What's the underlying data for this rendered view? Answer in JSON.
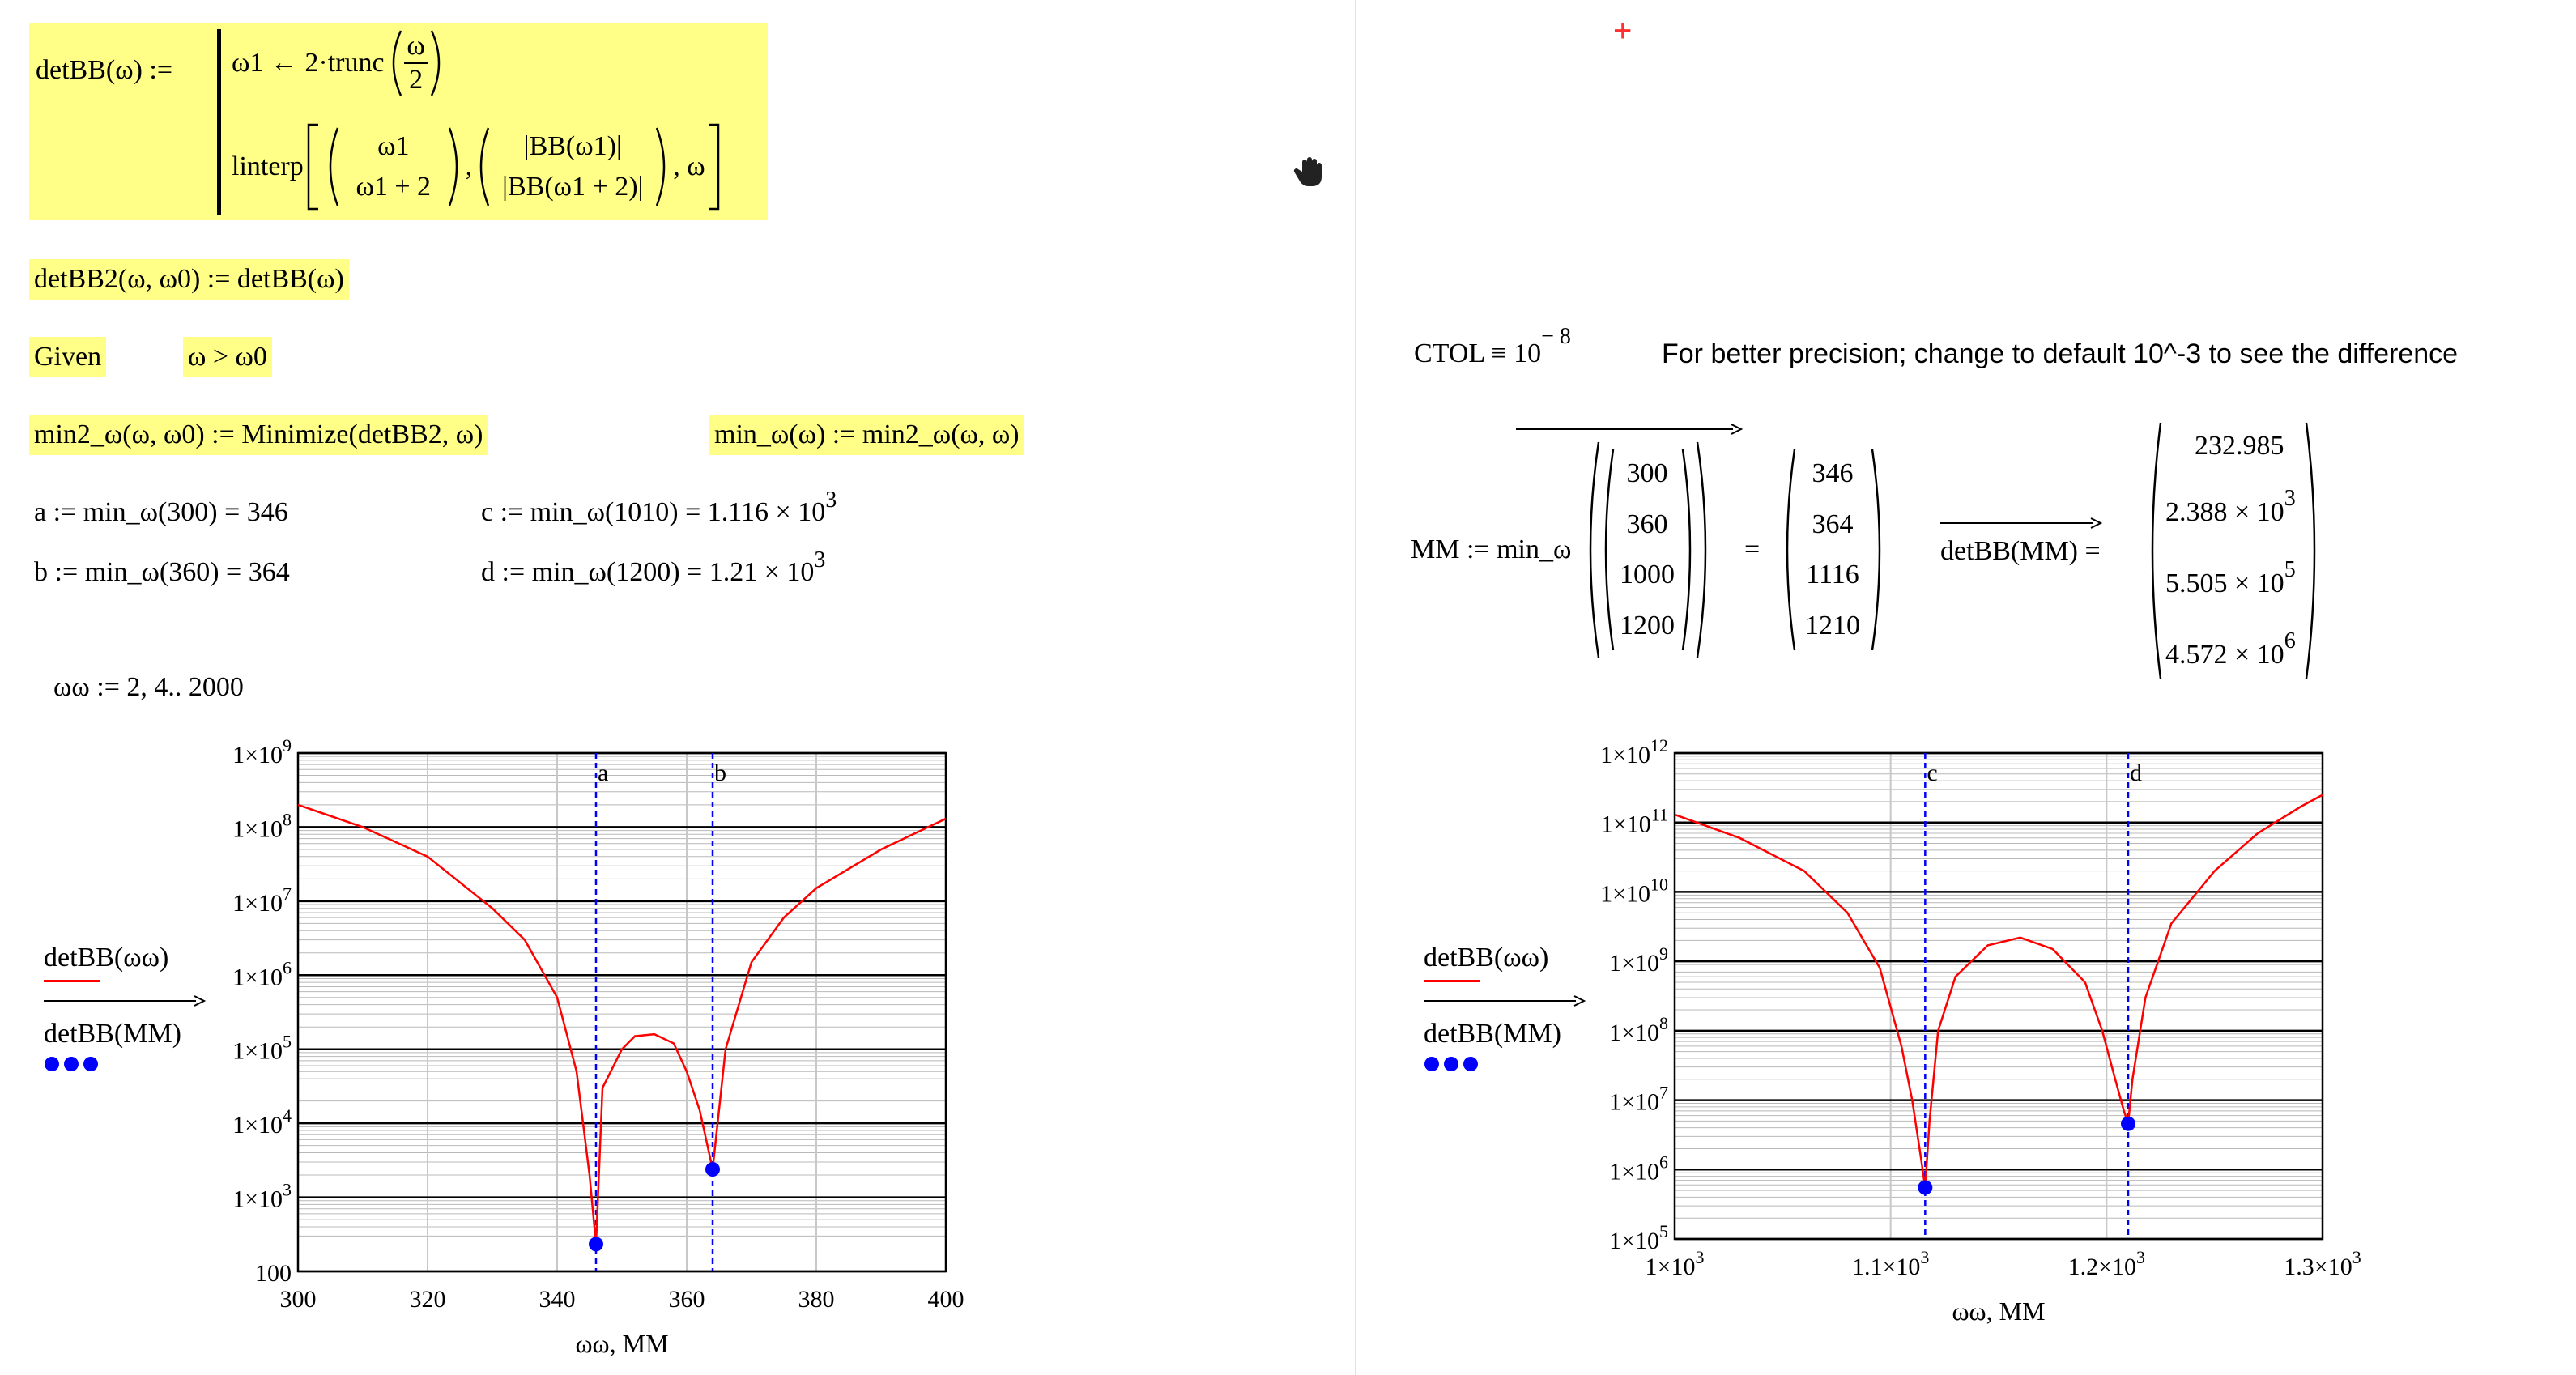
{
  "defs": {
    "detbb_def": {
      "lhs": "detBB(ω) :=",
      "line1": "ω1 ← 2·trunc",
      "frac_num": "ω",
      "frac_den": "2",
      "linterp": "linterp",
      "v1_top": "ω1",
      "v1_bot": "ω1 + 2",
      "v2_top": "|BB(ω1)|",
      "v2_bot": "|BB(ω1 + 2)|",
      "tail": ", ω"
    },
    "detbb2_def": "detBB2(ω, ω0) := detBB(ω)",
    "given": {
      "keyword": "Given",
      "constraint": "ω > ω0"
    },
    "min2_def": "min2_ω(ω, ω0) := Minimize(detBB2, ω)",
    "min_def": "min_ω(ω) := min2_ω(ω, ω)",
    "a_eq": "a := min_ω(300) = 346",
    "b_eq": "b := min_ω(360) = 364",
    "c_eq_base": "c := min_ω(1010) = 1.116 × 10",
    "c_eq_exp": "3",
    "d_eq_base": "d := min_ω(1200) = 1.21 × 10",
    "d_eq_exp": "3",
    "ww_range": "ωω := 2, 4.. 2000",
    "ctol_base": "CTOL ≡ 10",
    "ctol_exp": "− 8",
    "ctol_note": "For better precision; change to default 10^-3 to see the difference",
    "mm_lhs": "MM := min_ω",
    "mm_input": [
      "300",
      "360",
      "1000",
      "1200"
    ],
    "mm_eq": "=",
    "mm_result": [
      "346",
      "364",
      "1116",
      "1210"
    ],
    "detbb_mm_label": "detBB(MM) =",
    "detbb_mm_values": [
      {
        "base": "232.985",
        "exp": ""
      },
      {
        "base": "2.388 × 10",
        "exp": "3"
      },
      {
        "base": "5.505 × 10",
        "exp": "5"
      },
      {
        "base": "4.572 × 10",
        "exp": "6"
      }
    ]
  },
  "chart_data": [
    {
      "type": "line",
      "scale_y": "log",
      "xlabel": "ωω, MM",
      "legend": {
        "series1": "detBB(ωω)",
        "series2": "detBB(MM)",
        "placement": "left"
      },
      "xlim": [
        300,
        400
      ],
      "ylim": [
        100,
        1000000000
      ],
      "x_ticks": [
        "300",
        "320",
        "340",
        "360",
        "380",
        "400"
      ],
      "y_ticks": [
        "100",
        "1×10",
        "1×10",
        "1×10",
        "1×10",
        "1×10",
        "1×10",
        "1×10"
      ],
      "y_tick_exps": [
        "",
        "3",
        "4",
        "5",
        "6",
        "7",
        "8",
        "9"
      ],
      "markers": [
        {
          "label": "a",
          "x": 346
        },
        {
          "label": "b",
          "x": 364
        }
      ],
      "series": [
        {
          "name": "detBB(ωω)",
          "color": "#ff0000",
          "x": [
            300,
            310,
            320,
            330,
            335,
            340,
            343,
            345,
            346,
            347,
            350,
            352,
            355,
            358,
            360,
            362,
            363,
            364,
            366,
            370,
            375,
            380,
            390,
            400
          ],
          "y": [
            200000000,
            100000000,
            40000000,
            8000000,
            3000000,
            500000,
            50000,
            2000,
            232,
            30000,
            100000,
            150000,
            160000,
            120000,
            50000,
            15000,
            6000,
            2400,
            100000,
            1500000,
            6000000,
            15000000,
            50000000,
            130000000
          ]
        },
        {
          "name": "detBB(MM)",
          "color": "#0000ff",
          "style": "points",
          "x": [
            346,
            364
          ],
          "y": [
            233,
            2388
          ]
        }
      ]
    },
    {
      "type": "line",
      "scale_y": "log",
      "xlabel": "ωω, MM",
      "legend": {
        "series1": "detBB(ωω)",
        "series2": "detBB(MM)",
        "placement": "left"
      },
      "xlim": [
        1000,
        1300
      ],
      "ylim": [
        100000,
        1000000000000
      ],
      "x_ticks": [
        "1×10",
        "1.1×10",
        "1.2×10",
        "1.3×10"
      ],
      "x_tick_exps": [
        "3",
        "3",
        "3",
        "3"
      ],
      "y_ticks": [
        "1×10",
        "1×10",
        "1×10",
        "1×10",
        "1×10",
        "1×10",
        "1×10",
        "1×10"
      ],
      "y_tick_exps": [
        "5",
        "6",
        "7",
        "8",
        "9",
        "10",
        "11",
        "12"
      ],
      "markers": [
        {
          "label": "c",
          "x": 1116
        },
        {
          "label": "d",
          "x": 1210
        }
      ],
      "series": [
        {
          "name": "detBB(ωω)",
          "color": "#ff0000",
          "x": [
            1000,
            1030,
            1060,
            1080,
            1095,
            1105,
            1110,
            1114,
            1116,
            1118,
            1122,
            1130,
            1145,
            1160,
            1175,
            1190,
            1198,
            1204,
            1208,
            1210,
            1212,
            1218,
            1230,
            1250,
            1270,
            1290,
            1300
          ],
          "y": [
            130000000000,
            60000000000,
            20000000000,
            5000000000,
            800000000,
            60000000,
            10000000,
            1500000,
            550000,
            5000000,
            100000000,
            600000000,
            1700000000,
            2200000000,
            1500000000,
            500000000,
            100000000,
            20000000,
            7000000,
            4600000,
            20000000,
            300000000,
            3500000000,
            20000000000,
            70000000000,
            170000000000,
            250000000000
          ]
        },
        {
          "name": "detBB(MM)",
          "color": "#0000ff",
          "style": "points",
          "x": [
            1116,
            1210
          ],
          "y": [
            550000,
            4572000
          ]
        }
      ]
    }
  ]
}
